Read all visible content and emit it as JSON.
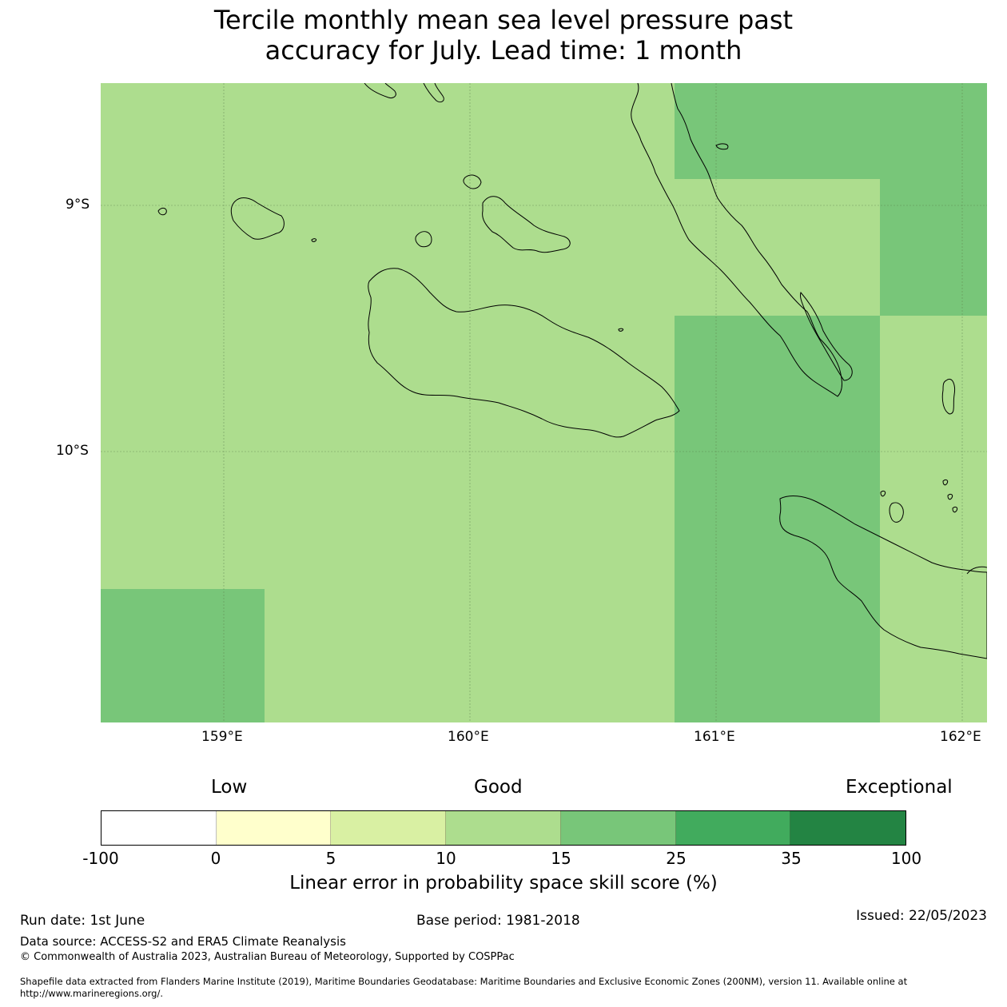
{
  "title_line1": "Tercile monthly mean sea level pressure past",
  "title_line2": "accuracy for July. Lead time: 1 month",
  "axes": {
    "lat_labels": [
      "9°S",
      "10°S"
    ],
    "lon_labels": [
      "159°E",
      "160°E",
      "161°E",
      "162°E"
    ]
  },
  "skill_categories": {
    "low": "Low",
    "good": "Good",
    "exceptional": "Exceptional"
  },
  "colorbar": {
    "ticks": [
      "-100",
      "0",
      "5",
      "10",
      "15",
      "25",
      "35",
      "100"
    ],
    "colors": [
      "#ffffff",
      "#ffffcc",
      "#d9f0a3",
      "#addd8e",
      "#78c679",
      "#41ab5d",
      "#238443"
    ],
    "label": "Linear error in probability space skill score (%)"
  },
  "map_colors": {
    "good_10_15": "#addd8e",
    "good_15_25": "#78c679"
  },
  "footer": {
    "run_date": "Run date: 1st June",
    "base_period": "Base period: 1981-2018",
    "issued": "Issued: 22/05/2023",
    "data_source": "Data source: ACCESS-S2 and ERA5 Climate Reanalysis",
    "copyright": "© Commonwealth of Australia 2023, Australian Bureau of Meteorology, Supported by COSPPac",
    "shapefile_line1": "Shapefile data extracted from Flanders Marine Institute (2019), Maritime Boundaries Geodatabase: Maritime Boundaries and Exclusive Economic Zones (200NM), version 11. Available online at",
    "shapefile_line2": "http://www.marineregions.org/."
  }
}
